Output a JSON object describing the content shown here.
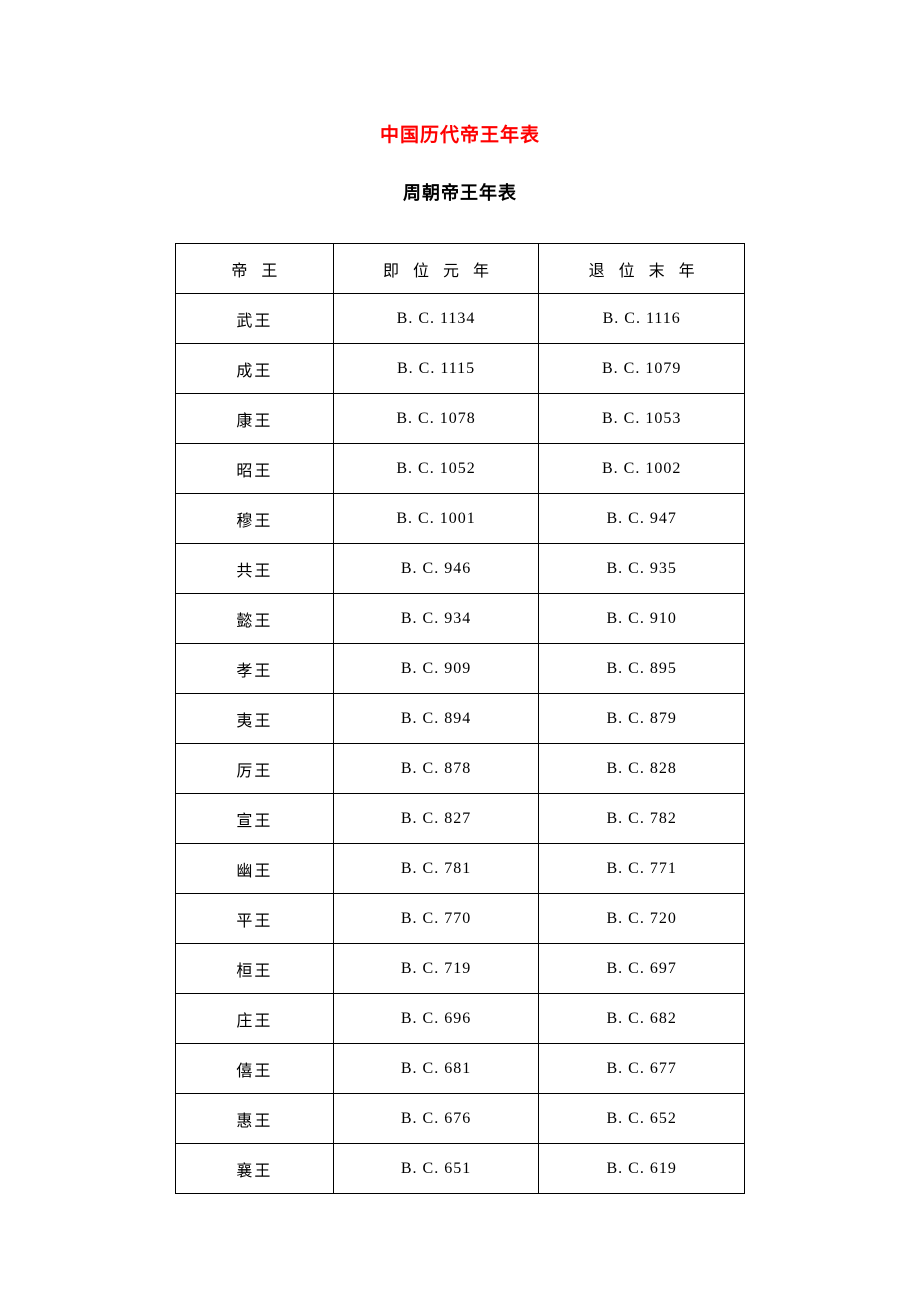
{
  "main_title": "中国历代帝王年表",
  "sub_title": "周朝帝王年表",
  "main_title_color": "#ff0000",
  "text_color": "#000000",
  "border_color": "#000000",
  "background_color": "#ffffff",
  "columns": [
    "帝王",
    "即位元年",
    "退位末年"
  ],
  "rows": [
    {
      "emperor": "武王",
      "start": "B. C. 1134",
      "end": "B. C. 1116"
    },
    {
      "emperor": "成王",
      "start": "B. C. 1115",
      "end": "B. C. 1079"
    },
    {
      "emperor": "康王",
      "start": "B. C. 1078",
      "end": "B. C. 1053"
    },
    {
      "emperor": "昭王",
      "start": "B. C. 1052",
      "end": "B. C. 1002"
    },
    {
      "emperor": "穆王",
      "start": "B. C. 1001",
      "end": "B. C. 947"
    },
    {
      "emperor": "共王",
      "start": "B. C. 946",
      "end": "B. C. 935"
    },
    {
      "emperor": "懿王",
      "start": "B. C. 934",
      "end": "B. C. 910"
    },
    {
      "emperor": "孝王",
      "start": "B. C. 909",
      "end": "B. C. 895"
    },
    {
      "emperor": "夷王",
      "start": "B. C. 894",
      "end": "B. C. 879"
    },
    {
      "emperor": "厉王",
      "start": "B. C. 878",
      "end": "B. C. 828"
    },
    {
      "emperor": "宣王",
      "start": "B. C. 827",
      "end": "B. C. 782"
    },
    {
      "emperor": "幽王",
      "start": "B. C. 781",
      "end": "B. C. 771"
    },
    {
      "emperor": "平王",
      "start": "B. C. 770",
      "end": "B. C. 720"
    },
    {
      "emperor": "桓王",
      "start": "B. C. 719",
      "end": "B. C. 697"
    },
    {
      "emperor": "庄王",
      "start": "B. C. 696",
      "end": "B. C. 682"
    },
    {
      "emperor": "僖王",
      "start": "B. C. 681",
      "end": "B. C. 677"
    },
    {
      "emperor": "惠王",
      "start": "B. C. 676",
      "end": "B. C. 652"
    },
    {
      "emperor": "襄王",
      "start": "B. C. 651",
      "end": "B. C. 619"
    }
  ]
}
